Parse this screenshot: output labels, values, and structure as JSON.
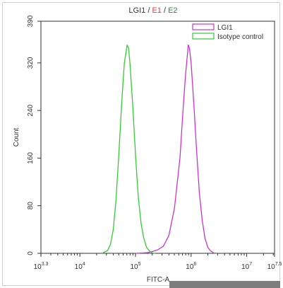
{
  "chart_data": {
    "type": "histogram",
    "title_parts": [
      {
        "text": "LGI1",
        "color": "#333333"
      },
      {
        "text": " / ",
        "color": "#333333"
      },
      {
        "text": "E1",
        "color": "#e03a3a"
      },
      {
        "text": " / ",
        "color": "#333333"
      },
      {
        "text": "E2",
        "color": "#2e8b3a"
      }
    ],
    "xlabel": "FITC-A",
    "ylabel": "Count",
    "x_scale": "log",
    "xlim": [
      1995,
      31623000
    ],
    "ylim": [
      0,
      390
    ],
    "y_ticks": [
      0,
      80,
      160,
      240,
      320,
      390
    ],
    "x_ticks": [
      {
        "value": 1995,
        "base": "10",
        "exp": "3.3"
      },
      {
        "value": 10000,
        "base": "10",
        "exp": "4"
      },
      {
        "value": 100000,
        "base": "10",
        "exp": "5"
      },
      {
        "value": 1000000,
        "base": "10",
        "exp": "6"
      },
      {
        "value": 10000000,
        "base": "10",
        "exp": "7"
      },
      {
        "value": 31623000,
        "base": "10",
        "exp": "7.5"
      }
    ],
    "legend_position": "top-right",
    "series": [
      {
        "name": "LGI1",
        "color": "#cc33cc",
        "points": [
          [
            100000,
            0
          ],
          [
            158000,
            1
          ],
          [
            200000,
            3
          ],
          [
            251000,
            6
          ],
          [
            316000,
            12
          ],
          [
            398000,
            30
          ],
          [
            501000,
            75
          ],
          [
            631000,
            160
          ],
          [
            708000,
            235
          ],
          [
            794000,
            300
          ],
          [
            891000,
            350
          ],
          [
            933000,
            345
          ],
          [
            1000000,
            320
          ],
          [
            1122000,
            250
          ],
          [
            1259000,
            170
          ],
          [
            1413000,
            100
          ],
          [
            1585000,
            55
          ],
          [
            1778000,
            25
          ],
          [
            2000000,
            10
          ],
          [
            2239000,
            4
          ],
          [
            2512000,
            1
          ],
          [
            2818000,
            0
          ]
        ]
      },
      {
        "name": "Isotype control",
        "color": "#33cc33",
        "points": [
          [
            25119,
            0
          ],
          [
            31623,
            5
          ],
          [
            35481,
            15
          ],
          [
            39811,
            40
          ],
          [
            44668,
            90
          ],
          [
            50119,
            165
          ],
          [
            56234,
            250
          ],
          [
            63096,
            320
          ],
          [
            70795,
            350
          ],
          [
            74989,
            345
          ],
          [
            79433,
            320
          ],
          [
            89125,
            250
          ],
          [
            100000,
            165
          ],
          [
            112202,
            95
          ],
          [
            125893,
            50
          ],
          [
            141254,
            25
          ],
          [
            158489,
            10
          ],
          [
            177828,
            4
          ],
          [
            199526,
            1
          ],
          [
            223872,
            0
          ]
        ]
      }
    ]
  }
}
